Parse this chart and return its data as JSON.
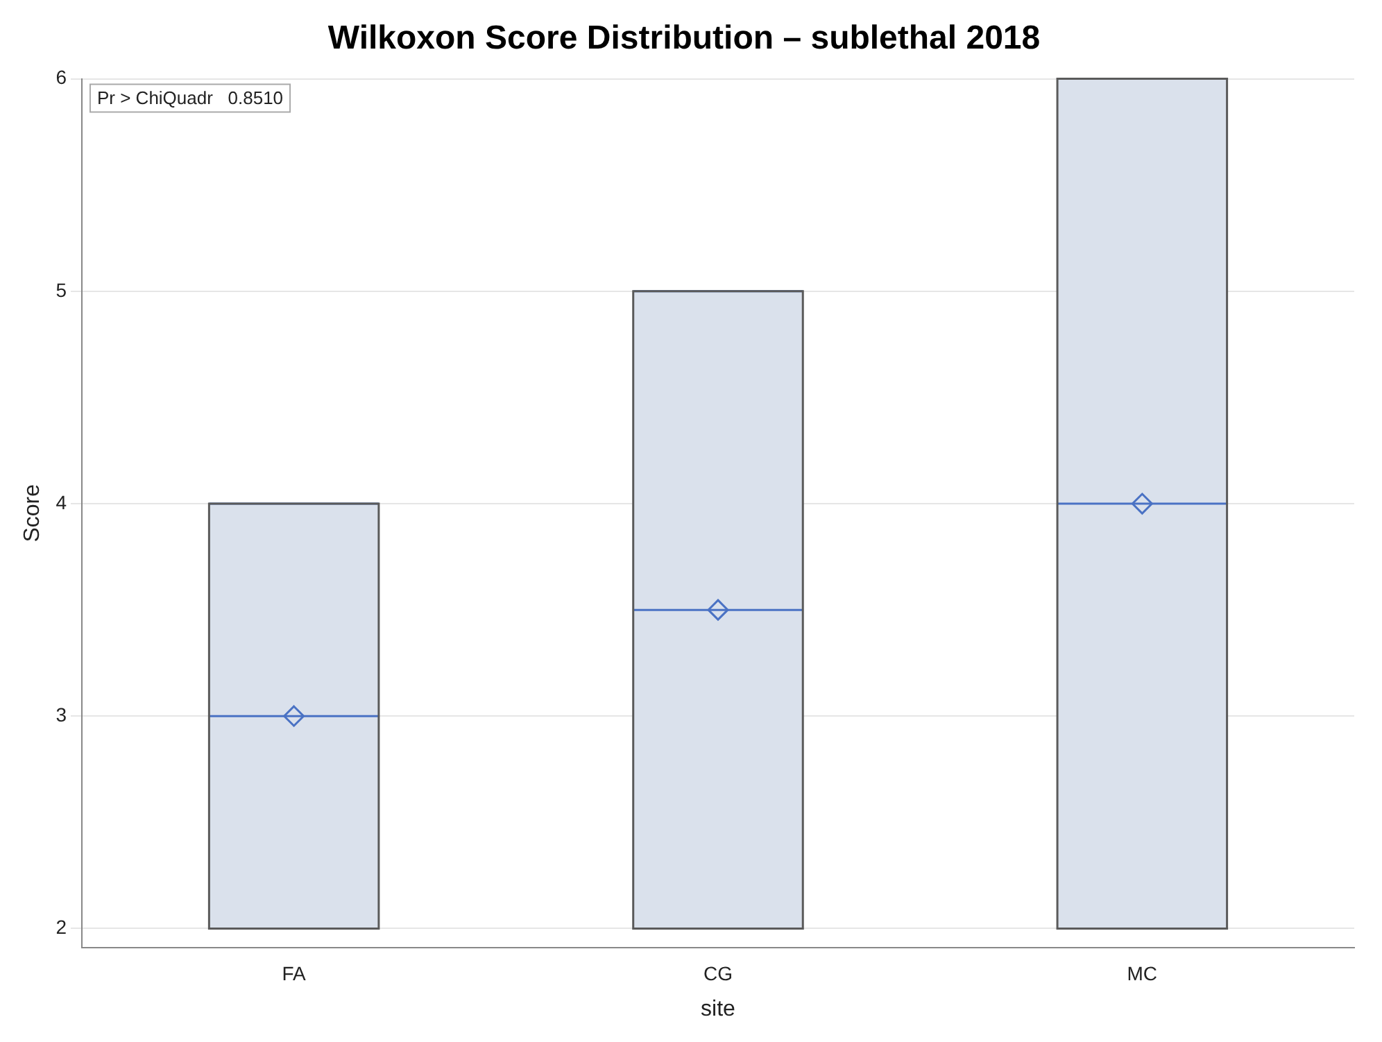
{
  "chart_data": {
    "type": "box",
    "title": "Wilkoxon Score Distribution – sublethal 2018",
    "xlabel": "site",
    "ylabel": "Score",
    "categories": [
      "FA",
      "CG",
      "MC"
    ],
    "boxes": [
      {
        "low": 2,
        "q1": 2,
        "median": 3,
        "q3": 4,
        "high": 4,
        "mean": 3
      },
      {
        "low": 2,
        "q1": 2,
        "median": 3.5,
        "q3": 5,
        "high": 5,
        "mean": 3.5
      },
      {
        "low": 2,
        "q1": 2,
        "median": 4,
        "q3": 6,
        "high": 6,
        "mean": 4
      }
    ],
    "color": "#dae1ec",
    "ylim": [
      1.91,
      6
    ],
    "yticks": [
      2,
      3,
      4,
      5,
      6
    ],
    "grid": "y",
    "marker": "diamond",
    "legend": false,
    "annotations": [
      "Pr > ChiQuadr   0.8510"
    ]
  }
}
